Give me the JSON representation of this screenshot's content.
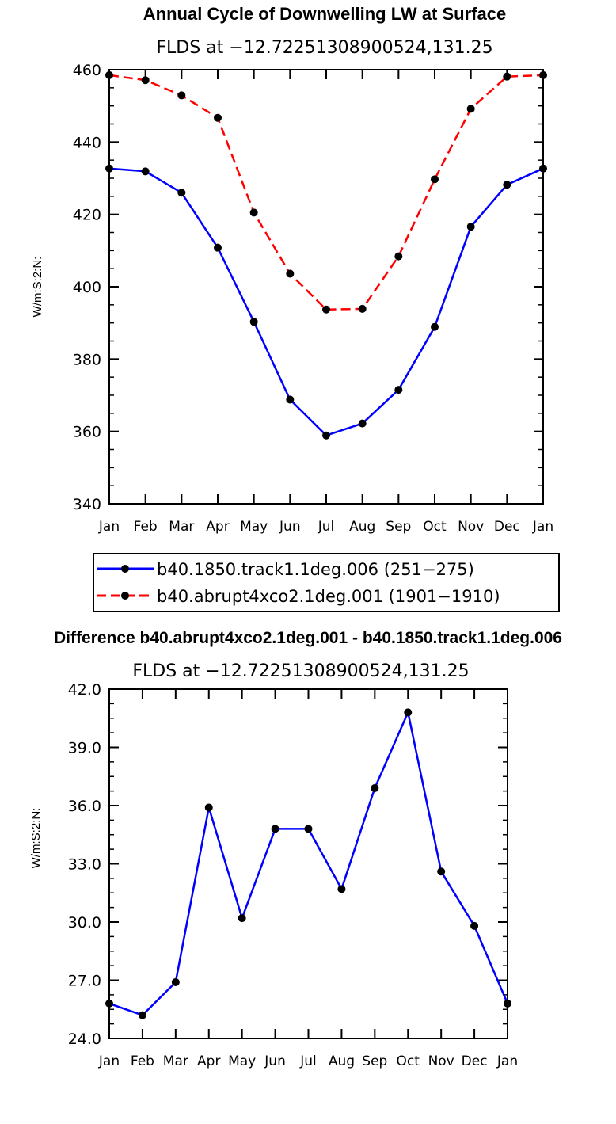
{
  "chart_data": [
    {
      "type": "line",
      "title": "Annual Cycle of Downwelling LW at Surface",
      "subtitle": "FLDS at −12.72251308900524,131.25",
      "ylabel": "W/m:S:2:N:",
      "xlabel": "",
      "categories": [
        "Jan",
        "Feb",
        "Mar",
        "Apr",
        "May",
        "Jun",
        "Jul",
        "Aug",
        "Sep",
        "Oct",
        "Nov",
        "Dec",
        "Jan"
      ],
      "ylim": [
        340,
        460
      ],
      "yticks": [
        "340",
        "360",
        "380",
        "400",
        "420",
        "440",
        "460"
      ],
      "series": [
        {
          "name": "b40.1850.track1.1deg.006 (251−275)",
          "color": "#0000ff",
          "dashed": false,
          "values": [
            432.7,
            431.9,
            426.0,
            410.8,
            390.3,
            368.8,
            358.9,
            362.2,
            371.5,
            388.9,
            416.6,
            428.2,
            432.7
          ]
        },
        {
          "name": "b40.abrupt4xco2.1deg.001 (1901−1910)",
          "color": "#ff0000",
          "dashed": true,
          "values": [
            458.5,
            457.1,
            452.9,
            446.7,
            420.5,
            403.6,
            393.7,
            393.9,
            408.4,
            429.7,
            449.2,
            458.1,
            458.5
          ]
        }
      ]
    },
    {
      "type": "line",
      "title": "Difference b40.abrupt4xco2.1deg.001 - b40.1850.track1.1deg.006",
      "subtitle": "FLDS at −12.72251308900524,131.25",
      "ylabel": "W/m:S:2:N:",
      "xlabel": "",
      "categories": [
        "Jan",
        "Feb",
        "Mar",
        "Apr",
        "May",
        "Jun",
        "Jul",
        "Aug",
        "Sep",
        "Oct",
        "Nov",
        "Dec",
        "Jan"
      ],
      "ylim": [
        24,
        42
      ],
      "yticks": [
        "24.0",
        "27.0",
        "30.0",
        "33.0",
        "36.0",
        "39.0",
        "42.0"
      ],
      "series": [
        {
          "name": "Difference",
          "color": "#0000ff",
          "dashed": false,
          "values": [
            25.8,
            25.2,
            26.9,
            35.9,
            30.2,
            34.8,
            34.8,
            31.7,
            36.9,
            40.8,
            32.6,
            29.8,
            25.8
          ]
        }
      ]
    }
  ]
}
